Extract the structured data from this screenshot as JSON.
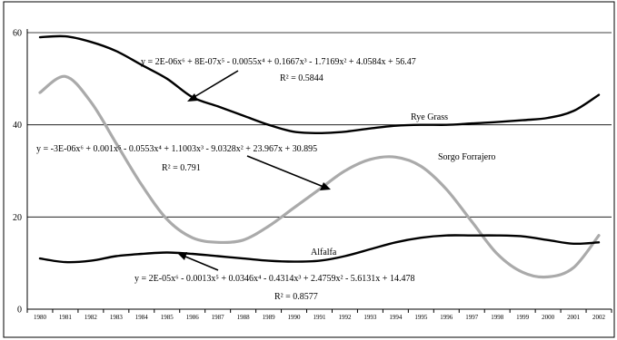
{
  "chart_data": {
    "type": "line",
    "x": [
      "1980",
      "1981",
      "1982",
      "1983",
      "1984",
      "1985",
      "1986",
      "1987",
      "1988",
      "1989",
      "1990",
      "1991",
      "1992",
      "1993",
      "1994",
      "1995",
      "1996",
      "1997",
      "1998",
      "1999",
      "2000",
      "2001",
      "2002"
    ],
    "ylim": [
      0,
      60
    ],
    "yticks": [
      "0",
      "20",
      "40",
      "60"
    ],
    "grid": "horizontal",
    "legend": "none",
    "series": [
      {
        "name": "Rye Grass",
        "color": "#000000",
        "values": [
          59,
          59.2,
          58,
          56,
          53,
          50,
          46,
          44,
          42,
          40,
          38.5,
          38.2,
          38.5,
          39.2,
          39.8,
          40,
          40,
          40.3,
          40.6,
          41,
          41.5,
          43,
          46.5
        ]
      },
      {
        "name": "Sorgo Forrajero",
        "color": "#aaaaaa",
        "values": [
          47,
          50.5,
          45,
          36,
          27,
          19.5,
          15.5,
          14.5,
          15,
          18,
          22,
          26,
          30,
          32.5,
          33,
          31,
          26,
          19,
          12,
          8,
          7,
          9,
          16
        ]
      },
      {
        "name": "Alfalfa",
        "color": "#000000",
        "values": [
          11,
          10.2,
          10.5,
          11.5,
          12,
          12.3,
          12,
          11.5,
          11,
          10.5,
          10.3,
          10.5,
          11.5,
          13,
          14.5,
          15.5,
          16,
          16,
          16,
          15.8,
          15,
          14.2,
          14.5
        ]
      }
    ],
    "annotations": {
      "rye_eq": "y = 2E-06x⁶ + 8E-07x⁵ - 0.0055x⁴ + 0.1667x³ - 1.7169x² + 4.0584x + 56.47",
      "rye_r2": "R² = 0.5844",
      "sorgo_eq": "y = -3E-06x⁶ + 0.001x⁵ - 0.0553x⁴ + 1.1003x³ - 9.0328x² + 23.967x + 30.895",
      "sorgo_r2": "R² = 0.791",
      "alfalfa_eq": "y = 2E-05x⁶ - 0.0013x⁵ + 0.0346x⁴ - 0.4314x³ + 2.4759x² - 5.6131x + 14.478",
      "alfalfa_r2": "R² = 0.8577"
    }
  }
}
